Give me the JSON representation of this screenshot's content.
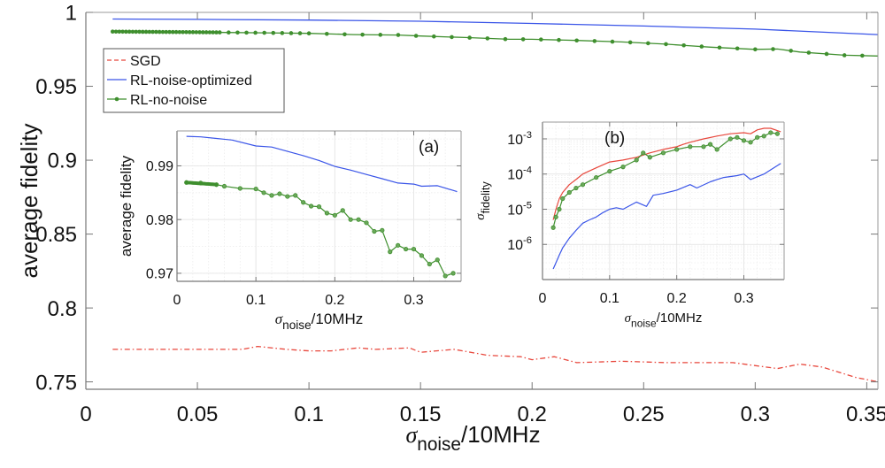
{
  "chart_data": [
    {
      "id": "main",
      "type": "line",
      "title": "",
      "xlabel": {
        "sigma": "σ",
        "sub": "noise",
        "rest": "/10MHz"
      },
      "ylabel": "average fidelity",
      "xlim": [
        0,
        0.355
      ],
      "ylim": [
        0.745,
        1.0
      ],
      "xticks": [
        0,
        0.05,
        0.1,
        0.15,
        0.2,
        0.25,
        0.3,
        0.35
      ],
      "xtick_labels": [
        "0",
        "0.05",
        "0.1",
        "0.15",
        "0.2",
        "0.25",
        "0.3",
        "0.35"
      ],
      "yticks": [
        0.75,
        0.8,
        0.85,
        0.9,
        0.95,
        1
      ],
      "ytick_labels": [
        "0.75",
        "0.8",
        "0.85",
        "0.9",
        "0.95",
        "1"
      ],
      "grid": false,
      "legend": {
        "placement": "top-left",
        "entries": [
          "SGD",
          "RL-noise-optimized",
          "RL-no-noise"
        ]
      },
      "series": [
        {
          "name": "SGD",
          "color": "#e8473c",
          "style": "dash-dot",
          "x": [
            0.012,
            0.03,
            0.04,
            0.05,
            0.06,
            0.07,
            0.077,
            0.09,
            0.1,
            0.11,
            0.122,
            0.13,
            0.145,
            0.15,
            0.165,
            0.18,
            0.195,
            0.2,
            0.21,
            0.22,
            0.24,
            0.26,
            0.28,
            0.29,
            0.31,
            0.32,
            0.33,
            0.345,
            0.355
          ],
          "y": [
            0.772,
            0.772,
            0.772,
            0.772,
            0.772,
            0.772,
            0.774,
            0.772,
            0.771,
            0.771,
            0.773,
            0.772,
            0.773,
            0.77,
            0.772,
            0.768,
            0.767,
            0.765,
            0.767,
            0.763,
            0.764,
            0.763,
            0.763,
            0.763,
            0.759,
            0.762,
            0.76,
            0.753,
            0.75
          ]
        },
        {
          "name": "RL-noise-optimized",
          "color": "#3a55e8",
          "style": "solid",
          "x": [
            0.012,
            0.05,
            0.1,
            0.15,
            0.2,
            0.25,
            0.3,
            0.355
          ],
          "y": [
            0.9955,
            0.9953,
            0.9948,
            0.994,
            0.9925,
            0.9908,
            0.9887,
            0.985
          ]
        },
        {
          "name": "RL-no-noise",
          "color": "#3f8f2e",
          "style": "line-marker",
          "x": [
            0.012,
            0.05,
            0.08,
            0.1,
            0.12,
            0.14,
            0.15,
            0.17,
            0.19,
            0.2,
            0.22,
            0.24,
            0.26,
            0.27,
            0.28,
            0.3,
            0.31,
            0.32,
            0.34,
            0.355
          ],
          "y": [
            0.987,
            0.9866,
            0.9862,
            0.9858,
            0.985,
            0.9847,
            0.984,
            0.983,
            0.9818,
            0.9818,
            0.981,
            0.98,
            0.9785,
            0.9775,
            0.9765,
            0.975,
            0.9752,
            0.9732,
            0.971,
            0.9705
          ]
        }
      ]
    },
    {
      "id": "inset-a",
      "type": "line",
      "annotation": "(a)",
      "xlabel": {
        "sigma": "σ",
        "sub": "noise",
        "rest": "/10MHz"
      },
      "ylabel": "average fidelity",
      "xlim": [
        0,
        0.36
      ],
      "ylim": [
        0.9685,
        0.9965
      ],
      "xticks": [
        0,
        0.1,
        0.2,
        0.3
      ],
      "xtick_labels": [
        "0",
        "0.1",
        "0.2",
        "0.3"
      ],
      "yticks": [
        0.97,
        0.98,
        0.99
      ],
      "ytick_labels": [
        "0.97",
        "0.98",
        "0.99"
      ],
      "grid": true,
      "series": [
        {
          "name": "RL-noise-optimized",
          "color": "#3a55e8",
          "x": [
            0.012,
            0.03,
            0.05,
            0.07,
            0.1,
            0.12,
            0.14,
            0.16,
            0.18,
            0.2,
            0.22,
            0.24,
            0.26,
            0.28,
            0.3,
            0.31,
            0.33,
            0.355
          ],
          "y": [
            0.9955,
            0.9954,
            0.9951,
            0.9948,
            0.9937,
            0.9935,
            0.9927,
            0.9919,
            0.991,
            0.9899,
            0.9892,
            0.9884,
            0.9876,
            0.9868,
            0.9866,
            0.9862,
            0.9863,
            0.9852
          ]
        },
        {
          "name": "RL-no-noise",
          "color": "#3f8f2e",
          "x": [
            0.012,
            0.03,
            0.05,
            0.06,
            0.08,
            0.1,
            0.11,
            0.12,
            0.13,
            0.14,
            0.15,
            0.16,
            0.17,
            0.18,
            0.19,
            0.2,
            0.21,
            0.22,
            0.23,
            0.24,
            0.25,
            0.26,
            0.27,
            0.28,
            0.29,
            0.3,
            0.31,
            0.32,
            0.33,
            0.34,
            0.35
          ],
          "y": [
            0.9869,
            0.9868,
            0.9865,
            0.9862,
            0.9858,
            0.9857,
            0.985,
            0.9845,
            0.9848,
            0.9843,
            0.9845,
            0.9832,
            0.9825,
            0.9824,
            0.9812,
            0.9808,
            0.9817,
            0.98,
            0.98,
            0.9794,
            0.9778,
            0.978,
            0.974,
            0.9752,
            0.9745,
            0.9745,
            0.9733,
            0.9717,
            0.9725,
            0.9695,
            0.97
          ]
        }
      ]
    },
    {
      "id": "inset-b",
      "type": "line",
      "annotation": "(b)",
      "xlabel": {
        "sigma": "σ",
        "sub": "noise",
        "rest": "/10MHz"
      },
      "ylabel": {
        "sigma": "σ",
        "sub": "fidelity"
      },
      "yscale": "log",
      "xlim": [
        0,
        0.36
      ],
      "ylim": [
        1e-07,
        0.003
      ],
      "xticks": [
        0,
        0.1,
        0.2,
        0.3
      ],
      "xtick_labels": [
        "0",
        "0.1",
        "0.2",
        "0.3"
      ],
      "yticks": [
        1e-06,
        1e-05,
        0.0001,
        0.001
      ],
      "ytick_labels": [
        {
          "base": "10",
          "exp": "-6"
        },
        {
          "base": "10",
          "exp": "-5"
        },
        {
          "base": "10",
          "exp": "-4"
        },
        {
          "base": "10",
          "exp": "-3"
        }
      ],
      "grid": true,
      "series": [
        {
          "name": "SGD",
          "color": "#e8473c",
          "x": [
            0.016,
            0.02,
            0.025,
            0.03,
            0.04,
            0.05,
            0.06,
            0.08,
            0.1,
            0.12,
            0.14,
            0.16,
            0.18,
            0.2,
            0.21,
            0.22,
            0.24,
            0.26,
            0.28,
            0.3,
            0.31,
            0.32,
            0.33,
            0.34,
            0.355
          ],
          "y": [
            5e-06,
            1e-05,
            2e-05,
            3e-05,
            5e-05,
            7e-05,
            0.0001,
            0.00015,
            0.00022,
            0.00025,
            0.0003,
            0.0004,
            0.0005,
            0.0006,
            0.0007,
            0.0008,
            0.001,
            0.0012,
            0.0014,
            0.0015,
            0.0014,
            0.0018,
            0.002,
            0.002,
            0.0016
          ]
        },
        {
          "name": "RL-noise-optimized",
          "color": "#3a55e8",
          "x": [
            0.016,
            0.02,
            0.025,
            0.03,
            0.04,
            0.05,
            0.06,
            0.07,
            0.08,
            0.09,
            0.1,
            0.11,
            0.12,
            0.14,
            0.155,
            0.165,
            0.18,
            0.2,
            0.22,
            0.23,
            0.25,
            0.26,
            0.27,
            0.29,
            0.3,
            0.31,
            0.33,
            0.355
          ],
          "y": [
            2e-07,
            3e-07,
            5e-07,
            8e-07,
            1.5e-06,
            2.5e-06,
            4e-06,
            5e-06,
            6e-06,
            8e-06,
            1e-05,
            1.1e-05,
            1e-05,
            1.6e-05,
            1.2e-05,
            2.5e-05,
            2.8e-05,
            3.5e-05,
            5e-05,
            4e-05,
            6e-05,
            7e-05,
            8e-05,
            9e-05,
            0.0001,
            7e-05,
            0.0001,
            0.0002
          ]
        },
        {
          "name": "RL-no-noise",
          "color": "#3f8f2e",
          "x": [
            0.016,
            0.02,
            0.025,
            0.03,
            0.04,
            0.05,
            0.06,
            0.08,
            0.1,
            0.12,
            0.14,
            0.15,
            0.16,
            0.18,
            0.2,
            0.22,
            0.24,
            0.25,
            0.26,
            0.28,
            0.29,
            0.3,
            0.31,
            0.32,
            0.33,
            0.34,
            0.35
          ],
          "y": [
            3e-06,
            6e-06,
            1e-05,
            2e-05,
            3e-05,
            4e-05,
            5e-05,
            8e-05,
            0.00012,
            0.00016,
            0.00025,
            0.0004,
            0.0003,
            0.0004,
            0.0005,
            0.0006,
            0.0006,
            0.0007,
            0.0005,
            0.001,
            0.0011,
            0.0009,
            0.0008,
            0.0011,
            0.0012,
            0.0015,
            0.0014
          ]
        }
      ]
    }
  ]
}
